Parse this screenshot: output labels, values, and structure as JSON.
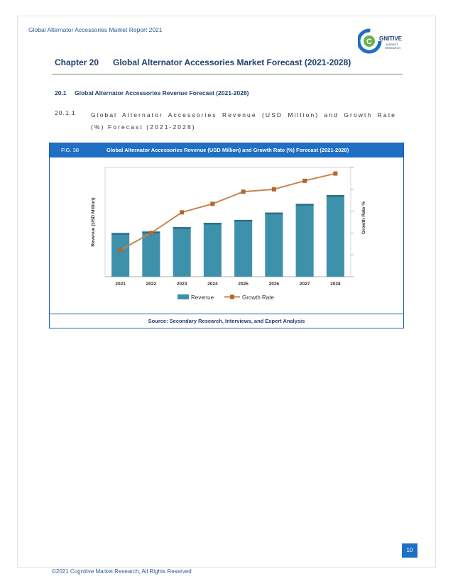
{
  "header": {
    "running_title": "Global Alternator Accessories Market Report 2021"
  },
  "logo": {
    "text_main": "GNITIVE",
    "text_sub1": "MARKET",
    "text_sub2": "RESEARCH",
    "letter": "C"
  },
  "chapter": {
    "number": "Chapter 20",
    "title": "Global Alternator Accessories Market Forecast (2021-2028)"
  },
  "section": {
    "number": "20.1",
    "title": "Global Alternator Accessories Revenue Forecast (2021-2028)"
  },
  "subsection": {
    "number": "20.1.1",
    "title": "Global Alternator Accessories Revenue (USD Million) and Growth Rate (%) Forecast (2021-2028)"
  },
  "figure": {
    "label": "FIG. 38",
    "title": "Global Alternator Accessories Revenue (USD Million) and Growth Rate (%) Forecast (2021-2028)",
    "source": "Source: Secondary Research, Interviews, and Expert Analysis"
  },
  "chart_data": {
    "type": "bar",
    "categories": [
      "2021",
      "2022",
      "2023",
      "2024",
      "2025",
      "2026",
      "2027",
      "2028"
    ],
    "series": [
      {
        "name": "Revenue",
        "kind": "bar",
        "axis": "left",
        "values": [
          3.0,
          3.1,
          3.4,
          3.7,
          3.9,
          4.4,
          5.0,
          5.6
        ],
        "color": "#3e91ab"
      },
      {
        "name": "Growth Rate",
        "kind": "line",
        "axis": "right",
        "values": [
          1.2,
          2.6,
          4.3,
          5.0,
          6.0,
          6.2,
          6.9,
          7.5
        ],
        "color": "#c6844e"
      }
    ],
    "ylabel": "Revenue (USD Million)",
    "y2label": "Growth Rate %",
    "ylim": [
      0,
      7.5
    ],
    "y2lim": [
      -1,
      8
    ],
    "legend_position": "bottom",
    "grid": false
  },
  "colors": {
    "accent": "#1f6fc4",
    "heading": "#1f3f70"
  },
  "page": {
    "number": "10"
  },
  "footer": {
    "copyright": "©2021 Cognitive Market Research, All Rights Reserved"
  }
}
